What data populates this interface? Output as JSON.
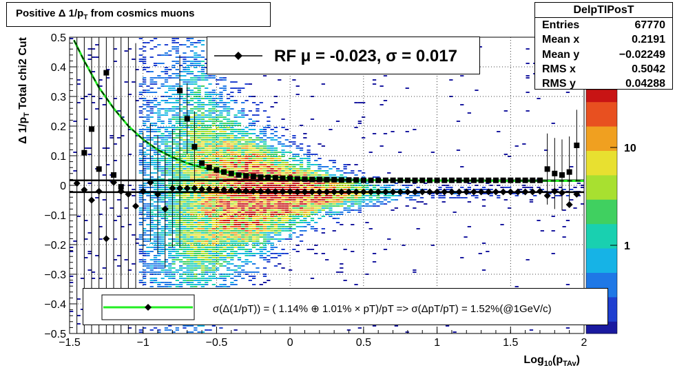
{
  "title": "Positive Δ 1/p",
  "title_sub": "T",
  "title_tail": " from cosmics muons",
  "stats": {
    "name": "DelpTIPosT",
    "rows": [
      {
        "k": "Entries",
        "v": "67770"
      },
      {
        "k": "Mean x",
        "v": "0.2191"
      },
      {
        "k": "Mean y",
        "v": "−0.02249"
      },
      {
        "k": "RMS x",
        "v": "0.5042"
      },
      {
        "k": "RMS y",
        "v": "0.04288"
      }
    ]
  },
  "rf_label": "RF μ = -0.023, σ =   0.017",
  "fit_label": "σ(Δ(1/pT)) = ( 1.14% ⊕  1.01% × pT)/pT => σ(ΔpT/pT) =  1.52%(@1GeV/c)",
  "colors": {
    "mean_line": "#000000",
    "sigma_fit": "#22ee22",
    "markers": "#000000"
  },
  "chart_data": {
    "type": "heatmap",
    "xlabel": "Log10(pTAv)",
    "ylabel": "Δ 1/pT   Total chi2 Cut",
    "xlim": [
      -1.5,
      2
    ],
    "ylim": [
      -0.5,
      0.5
    ],
    "x_ticks": [
      "−1.5",
      "−1",
      "−0.5",
      "0",
      "0.5",
      "1",
      "1.5",
      "2"
    ],
    "y_ticks": [
      "−0.5",
      "−0.4",
      "−0.3",
      "−0.2",
      "−0.1",
      "0",
      "0.1",
      "0.2",
      "0.3",
      "0.4",
      "0.5"
    ],
    "z_ticks": [
      "1",
      "10"
    ],
    "z_scale": "log",
    "grid": true,
    "mean_level": -0.023,
    "sigma_level": 0.017,
    "mean_points": {
      "x": [
        -1.45,
        -1.4,
        -1.35,
        -1.3,
        -1.25,
        -1.2,
        -1.15,
        -1.1,
        -1.05,
        -1,
        -0.95,
        -0.9,
        -0.85,
        -0.8,
        -0.75,
        -0.7,
        -0.65,
        -0.6,
        -0.55,
        -0.5,
        -0.45,
        -0.4,
        -0.35,
        -0.3,
        -0.25,
        -0.2,
        -0.15,
        -0.1,
        -0.05,
        0,
        0.05,
        0.1,
        0.15,
        0.2,
        0.25,
        0.3,
        0.35,
        0.4,
        0.45,
        0.5,
        0.55,
        0.6,
        0.65,
        0.7,
        0.75,
        0.8,
        0.85,
        0.9,
        0.95,
        1,
        1.05,
        1.1,
        1.15,
        1.2,
        1.25,
        1.3,
        1.35,
        1.4,
        1.45,
        1.5,
        1.55,
        1.6,
        1.65,
        1.7,
        1.75,
        1.8,
        1.85,
        1.9,
        1.95
      ],
      "y": [
        0.007,
        -0.015,
        -0.05,
        -0.02,
        -0.18,
        0.01,
        -0.02,
        -0.03,
        -0.07,
        -0.02,
        0.01,
        -0.03,
        -0.08,
        -0.01,
        -0.01,
        -0.01,
        -0.01,
        -0.013,
        -0.013,
        -0.015,
        -0.015,
        -0.017,
        -0.018,
        -0.019,
        -0.02,
        -0.02,
        -0.02,
        -0.021,
        -0.021,
        -0.021,
        -0.022,
        -0.022,
        -0.022,
        -0.022,
        -0.022,
        -0.022,
        -0.022,
        -0.022,
        -0.022,
        -0.022,
        -0.022,
        -0.022,
        -0.022,
        -0.022,
        -0.022,
        -0.022,
        -0.022,
        -0.022,
        -0.022,
        -0.022,
        -0.022,
        -0.022,
        -0.022,
        -0.022,
        -0.022,
        -0.022,
        -0.022,
        -0.022,
        -0.022,
        -0.022,
        -0.022,
        -0.022,
        -0.022,
        -0.02,
        -0.035,
        -0.02,
        -0.025,
        -0.065,
        -0.03
      ]
    },
    "rms_points": {
      "x": [
        -1.4,
        -1.35,
        -1.3,
        -1.25,
        -1.2,
        -1.15,
        -0.75,
        -0.7,
        -0.65,
        -0.6,
        -0.55,
        -0.5,
        -0.45,
        -0.4,
        -0.35,
        -0.3,
        -0.25,
        -0.2,
        -0.15,
        -0.1,
        -0.05,
        0,
        0.05,
        0.1,
        0.15,
        0.2,
        0.25,
        0.3,
        0.35,
        0.4,
        0.45,
        0.5,
        0.55,
        0.6,
        0.65,
        0.7,
        0.75,
        0.8,
        0.85,
        0.9,
        0.95,
        1,
        1.05,
        1.1,
        1.15,
        1.2,
        1.25,
        1.3,
        1.35,
        1.4,
        1.45,
        1.5,
        1.55,
        1.6,
        1.65,
        1.7,
        1.75,
        1.8,
        1.85,
        1.9,
        1.95
      ],
      "y": [
        0.11,
        0.19,
        0.055,
        0.38,
        0.035,
        -0.005,
        0.32,
        0.225,
        0.13,
        0.075,
        0.06,
        0.052,
        0.045,
        0.04,
        0.035,
        0.032,
        0.03,
        0.028,
        0.026,
        0.025,
        0.024,
        0.023,
        0.022,
        0.021,
        0.02,
        0.02,
        0.019,
        0.019,
        0.018,
        0.018,
        0.018,
        0.017,
        0.017,
        0.017,
        0.017,
        0.017,
        0.017,
        0.017,
        0.017,
        0.017,
        0.017,
        0.017,
        0.017,
        0.017,
        0.017,
        0.017,
        0.017,
        0.017,
        0.017,
        0.017,
        0.017,
        0.017,
        0.017,
        0.017,
        0.017,
        0.017,
        0.055,
        0.04,
        0.035,
        0.045,
        0.135
      ]
    },
    "sigma_fit": {
      "x": [
        -1.47,
        -1.4,
        -1.3,
        -1.2,
        -1.1,
        -1.0,
        -0.9,
        -0.8,
        -0.7,
        -0.6,
        -0.5,
        -0.4,
        -0.3,
        -0.2,
        -0.1,
        0,
        0.25,
        0.5,
        1,
        1.5,
        2
      ],
      "y": [
        0.49,
        0.42,
        0.33,
        0.26,
        0.2,
        0.155,
        0.12,
        0.095,
        0.075,
        0.06,
        0.05,
        0.042,
        0.036,
        0.031,
        0.028,
        0.025,
        0.021,
        0.018,
        0.016,
        0.015,
        0.015
      ]
    }
  }
}
